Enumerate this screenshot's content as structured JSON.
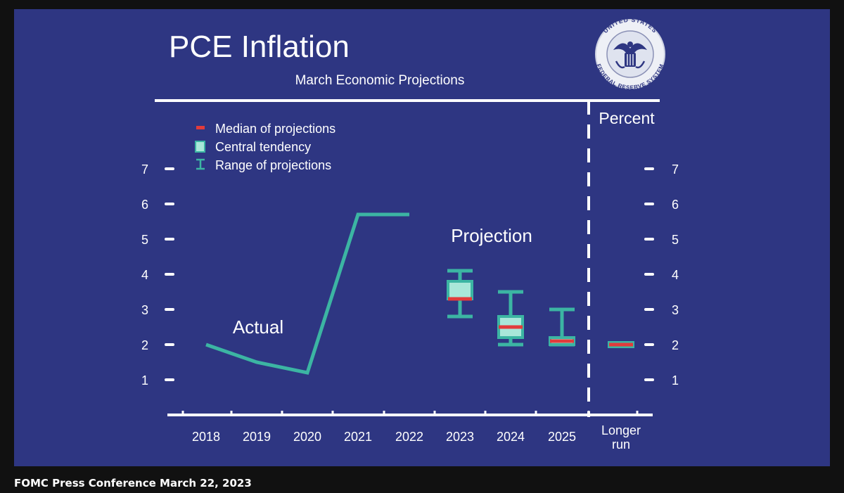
{
  "caption": "FOMC Press Conference March 22, 2023",
  "seal": {
    "top_text": "UNITED STATES",
    "bottom_text": "FEDERAL RESERVE SYSTEM"
  },
  "colors": {
    "background": "#2e3682",
    "teal": "#3cb5a3",
    "central_fill": "#a9e7d9",
    "median": "#e23b3b",
    "axis": "#ffffff"
  },
  "chart_data": {
    "type": "line",
    "title": "PCE Inflation",
    "subtitle": "March Economic Projections",
    "unit_label": "Percent",
    "ylim": [
      0,
      7
    ],
    "yticks": [
      1,
      2,
      3,
      4,
      5,
      6,
      7
    ],
    "categories": [
      "2018",
      "2019",
      "2020",
      "2021",
      "2022",
      "2023",
      "2024",
      "2025",
      "Longer run"
    ],
    "actual_label": "Actual",
    "projection_label": "Projection",
    "actual": [
      {
        "x": "2018",
        "y": 2.0
      },
      {
        "x": "2019",
        "y": 1.5
      },
      {
        "x": "2020",
        "y": 1.2
      },
      {
        "x": "2021",
        "y": 5.7
      },
      {
        "x": "2022",
        "y": 5.7
      }
    ],
    "projections": [
      {
        "x": "2023",
        "median": 3.3,
        "central_low": 3.3,
        "central_high": 3.8,
        "range_low": 2.8,
        "range_high": 4.1
      },
      {
        "x": "2024",
        "median": 2.5,
        "central_low": 2.2,
        "central_high": 2.8,
        "range_low": 2.0,
        "range_high": 3.5
      },
      {
        "x": "2025",
        "median": 2.1,
        "central_low": 2.0,
        "central_high": 2.2,
        "range_low": 2.0,
        "range_high": 3.0
      },
      {
        "x": "Longer run",
        "median": 2.0,
        "central_low": 2.0,
        "central_high": 2.0,
        "range_low": 2.0,
        "range_high": 2.0
      }
    ],
    "legend": {
      "position": "top-left",
      "median": "Median of projections",
      "central": "Central tendency",
      "range": "Range of projections"
    }
  }
}
